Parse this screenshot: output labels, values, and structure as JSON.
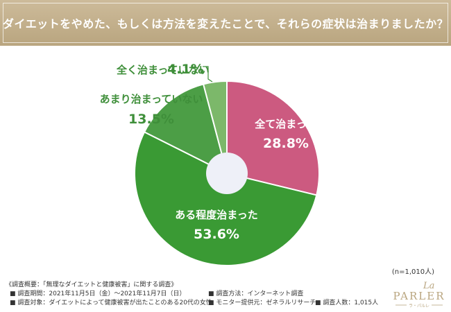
{
  "header": {
    "title": "ダイエットをやめた、もしくは方法を変えたことで、それらの症状は治まりましたか？"
  },
  "chart_data": {
    "type": "pie",
    "title": "",
    "slices": [
      {
        "label": "全て治まった",
        "value": 28.8,
        "value_label": "28.8%",
        "color": "#cc5a80"
      },
      {
        "label": "ある程度治まった",
        "value": 53.6,
        "value_label": "53.6%",
        "color": "#3a9a34"
      },
      {
        "label": "あまり治まっていない",
        "value": 13.5,
        "value_label": "13.5%",
        "color": "#4c9e46"
      },
      {
        "label": "全く治まっていない",
        "value": 4.1,
        "value_label": "4.1%",
        "color": "#7cb86a"
      }
    ]
  },
  "sample_size": "(n=1,010人)",
  "footer": {
    "survey_title": "《調査概要：「無理なダイエットと健康被害」に関する調査》",
    "period": "■ 調査期間：2021年11月5日（金）〜2021年11月7日（日）",
    "method": "■ 調査方法：インターネット調査",
    "target": "■ 調査対象：ダイエットによって健康被害が出たことのある20代の女性",
    "provider": "■ モニター提供元：ゼネラルリサーチ",
    "count": "■ 調査人数：1,015人"
  },
  "logo": {
    "script": "La",
    "name": "PARLER",
    "kana": "ラ・パルレ",
    "color": "#b9a57f"
  }
}
